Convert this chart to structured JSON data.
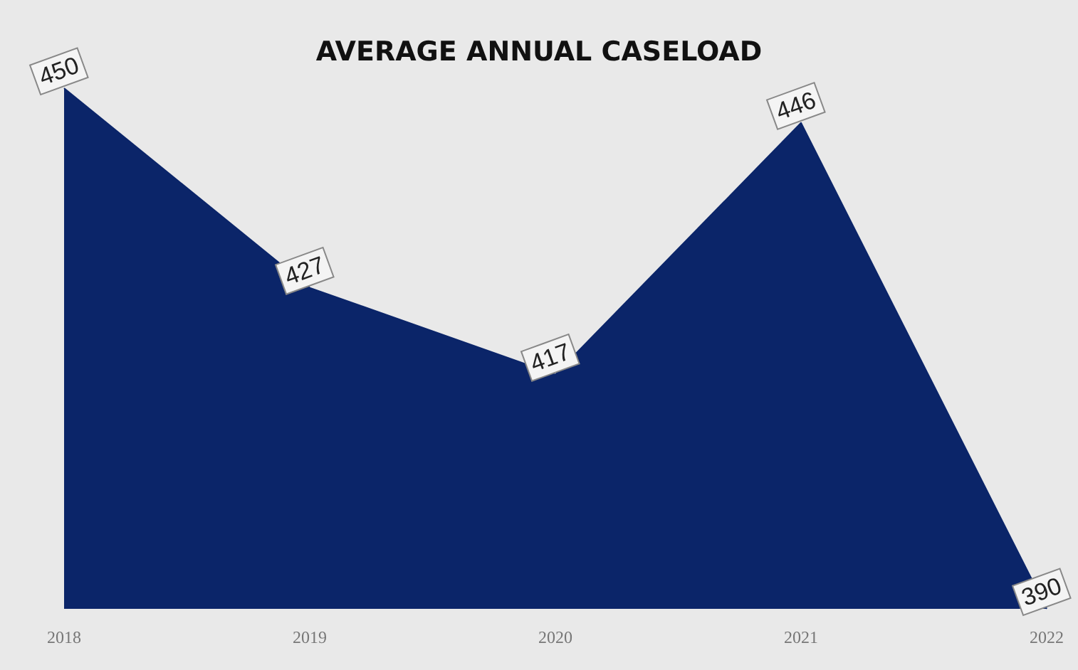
{
  "chart_data": {
    "type": "area",
    "title": "AVERAGE ANNUAL CASELOAD",
    "categories": [
      "2018",
      "2019",
      "2020",
      "2021",
      "2022"
    ],
    "series": [
      {
        "color": "#0b2569",
        "values": [
          450,
          427,
          417,
          446,
          390
        ]
      }
    ],
    "data_labels": true,
    "grid": false,
    "tick_labels": "x",
    "marker": "none"
  }
}
